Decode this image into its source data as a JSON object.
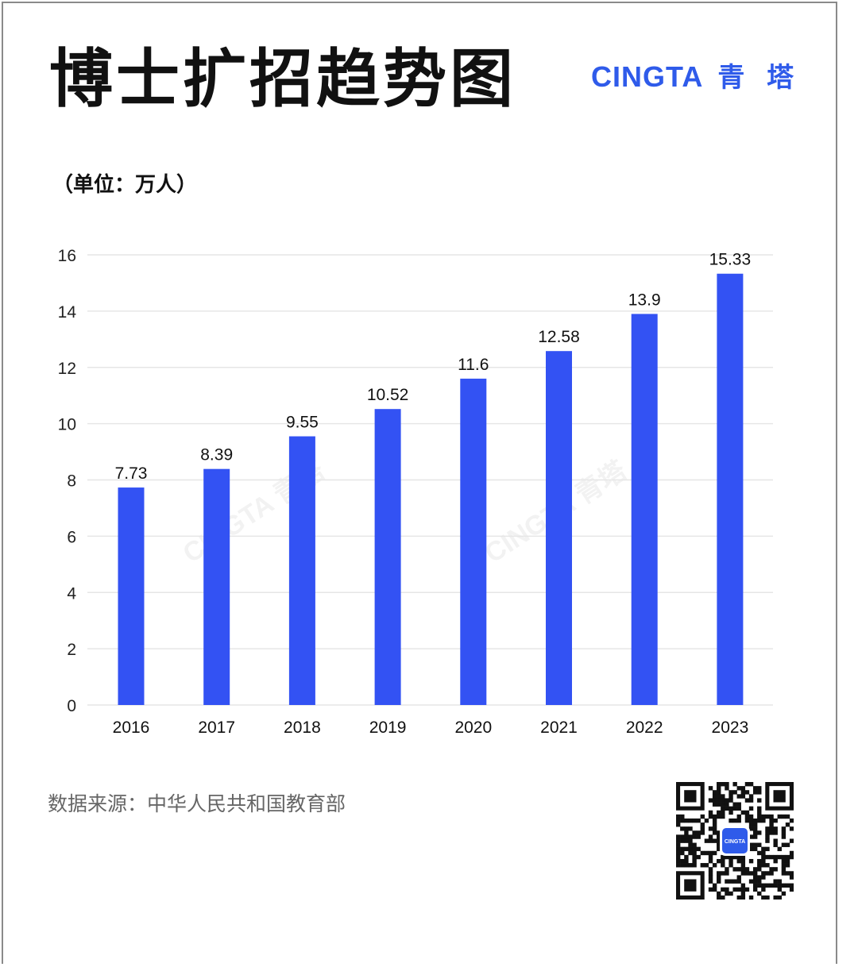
{
  "title": "博士扩招趋势图",
  "brand": {
    "name_en": "CINGTA",
    "name_cn": "青 塔",
    "color": "#2f5bea"
  },
  "unit_label": "（单位：万人）",
  "source": "数据来源：中华人民共和国教育部",
  "qr_badge": "CINGTA",
  "watermark": [
    "CINGTA 青塔",
    "CINGTA 青塔"
  ],
  "chart_data": {
    "type": "bar",
    "categories": [
      "2016",
      "2017",
      "2018",
      "2019",
      "2020",
      "2021",
      "2022",
      "2023"
    ],
    "values": [
      7.73,
      8.39,
      9.55,
      10.52,
      11.6,
      12.58,
      13.9,
      15.33
    ],
    "data_labels": [
      "7.73",
      "8.39",
      "9.55",
      "10.52",
      "11.6",
      "12.58",
      "13.9",
      "15.33"
    ],
    "ylim": [
      0,
      16
    ],
    "yticks": [
      0,
      2,
      4,
      6,
      8,
      10,
      12,
      14,
      16
    ],
    "grid": true,
    "bar_color": "#3352f3"
  }
}
